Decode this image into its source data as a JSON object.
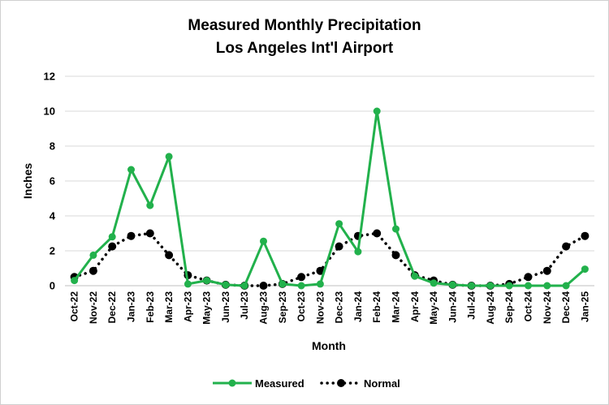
{
  "chart_data": {
    "type": "line",
    "title": "Measured Monthly Precipitation",
    "subtitle": "Los Angeles Int'l Airport",
    "xlabel": "Month",
    "ylabel": "Inches",
    "ylim": [
      0,
      12
    ],
    "yticks": [
      "0",
      "2",
      "4",
      "6",
      "8",
      "10",
      "12"
    ],
    "grid": "horizontal",
    "legend_position": "bottom",
    "categories": [
      "Oct-22",
      "Nov-22",
      "Dec-22",
      "Jan-23",
      "Feb-23",
      "Mar-23",
      "Apr-23",
      "May-23",
      "Jun-23",
      "Jul-23",
      "Aug-23",
      "Sep-23",
      "Oct-23",
      "Nov-23",
      "Dec-23",
      "Jan-24",
      "Feb-24",
      "Mar-24",
      "Apr-24",
      "May-24",
      "Jun-24",
      "Jul-24",
      "Aug-24",
      "Sep-24",
      "Oct-24",
      "Nov-24",
      "Dec-24",
      "Jan-25"
    ],
    "series": [
      {
        "name": "Measured",
        "color": "#22b14c",
        "style": "solid",
        "values": [
          0.3,
          1.75,
          2.8,
          6.65,
          4.6,
          7.4,
          0.1,
          0.3,
          0.05,
          0.0,
          2.55,
          0.1,
          0.0,
          0.1,
          3.55,
          1.95,
          10.0,
          3.25,
          0.55,
          0.15,
          0.05,
          0.0,
          0.0,
          0.0,
          0.0,
          0.0,
          0.0,
          0.95
        ]
      },
      {
        "name": "Normal",
        "color": "#000000",
        "style": "dotted",
        "values": [
          0.5,
          0.85,
          2.25,
          2.85,
          3.0,
          1.75,
          0.6,
          0.3,
          0.05,
          0.0,
          0.0,
          0.1,
          0.5,
          0.85,
          2.25,
          2.85,
          3.0,
          1.75,
          0.6,
          0.3,
          0.05,
          0.0,
          0.0,
          0.1,
          0.5,
          0.85,
          2.25,
          2.85
        ]
      }
    ]
  }
}
